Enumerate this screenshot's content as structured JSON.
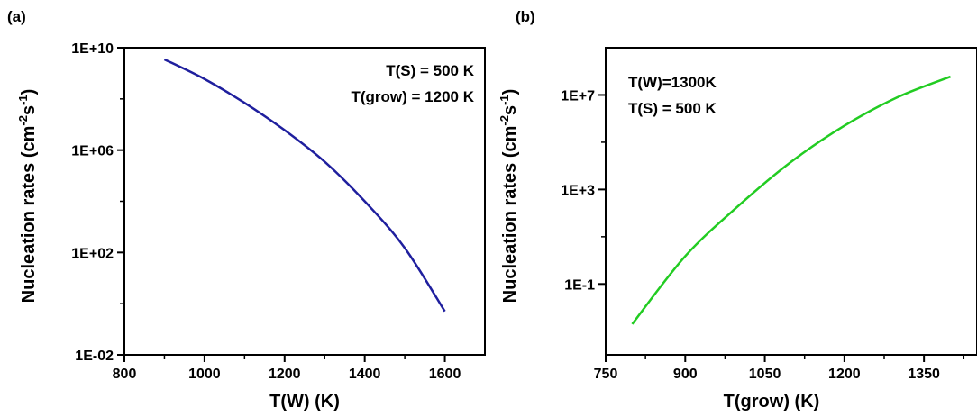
{
  "chart_data": [
    {
      "panel_label": "(a)",
      "type": "line",
      "xlabel": "T(W)  (K)",
      "ylabel": "Nucleation rates (cm",
      "ylabel_sup1": "-2",
      "ylabel_mid": "s",
      "ylabel_sup2": "-1",
      "ylabel_end": ")",
      "xlim": [
        800,
        1700
      ],
      "ylim": [
        0.01,
        10000000000
      ],
      "yscale": "log",
      "xticks": [
        800,
        1000,
        1200,
        1400,
        1600
      ],
      "xtick_labels": [
        "800",
        "1000",
        "1200",
        "1400",
        "1600"
      ],
      "yticks": [
        0.01,
        100,
        1000000,
        10000000000
      ],
      "ytick_labels": [
        "1E-02",
        "1E+02",
        "1E+06",
        "1E+10"
      ],
      "annotations": [
        "T(S) = 500 K",
        "T(grow) = 1200 K"
      ],
      "series": [
        {
          "color": "#1f1f9e",
          "x": [
            900,
            1000,
            1100,
            1200,
            1300,
            1400,
            1500,
            1600
          ],
          "y": [
            3500000000,
            600000000,
            70000000,
            6000000,
            350000,
            10000,
            150,
            0.5
          ]
        }
      ]
    },
    {
      "panel_label": "(b)",
      "type": "line",
      "xlabel": "T(grow)  (K)",
      "ylabel": "Nucleation rates (cm",
      "ylabel_sup1": "-2",
      "ylabel_mid": "s",
      "ylabel_sup2": "-1",
      "ylabel_end": ")",
      "xlim": [
        750,
        1450
      ],
      "ylim": [
        0.0001,
        1000000000
      ],
      "yscale": "log",
      "xticks": [
        750,
        900,
        1050,
        1200,
        1350
      ],
      "xtick_labels": [
        "750",
        "900",
        "1050",
        "1200",
        "1350"
      ],
      "yticks": [
        0.1,
        1000,
        10000000
      ],
      "ytick_labels": [
        "1E-1",
        "1E+3",
        "1E+7"
      ],
      "annotations": [
        "T(W)=1300K",
        "T(S) = 500 K"
      ],
      "series": [
        {
          "color": "#22cc22",
          "x": [
            800,
            900,
            1000,
            1100,
            1200,
            1300,
            1400
          ],
          "y": [
            0.002,
            1.5,
            200,
            15000,
            500000,
            8000000,
            60000000
          ]
        }
      ]
    }
  ]
}
